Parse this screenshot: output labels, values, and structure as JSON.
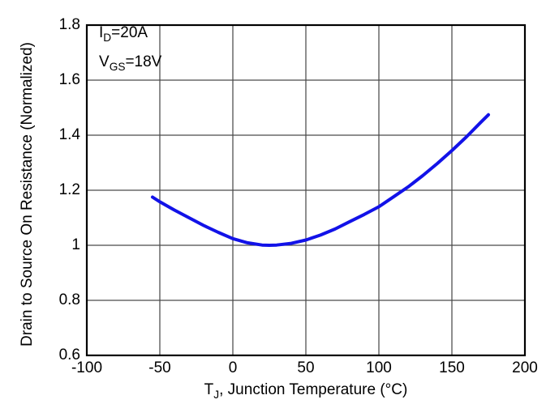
{
  "chart_data": {
    "type": "line",
    "title": "",
    "xlabel_pre": "T",
    "xlabel_sub": "J",
    "xlabel_post": ", Junction Temperature (°C)",
    "ylabel": "Drain to Source On Resistance (Normalized)",
    "xlim": [
      -100,
      200
    ],
    "ylim": [
      0.6,
      1.8
    ],
    "grid": true,
    "legend": "none",
    "xticks": [
      {
        "value": -100,
        "label": "-100"
      },
      {
        "value": -50,
        "label": "-50"
      },
      {
        "value": 0,
        "label": "0"
      },
      {
        "value": 50,
        "label": "50"
      },
      {
        "value": 100,
        "label": "100"
      },
      {
        "value": 150,
        "label": "150"
      },
      {
        "value": 200,
        "label": "200"
      }
    ],
    "yticks": [
      {
        "value": 0.6,
        "label": "0.6"
      },
      {
        "value": 0.8,
        "label": "0.8"
      },
      {
        "value": 1.0,
        "label": "1"
      },
      {
        "value": 1.2,
        "label": "1.2"
      },
      {
        "value": 1.4,
        "label": "1.4"
      },
      {
        "value": 1.6,
        "label": "1.6"
      },
      {
        "value": 1.8,
        "label": "1.8"
      }
    ],
    "annotations": [
      {
        "pre": "I",
        "sub": "D",
        "post": "=20A"
      },
      {
        "pre": "V",
        "sub": "GS",
        "post": "=18V"
      }
    ],
    "series": [
      {
        "name": "normalized-rds-on",
        "color": "#1212e8",
        "points": [
          [
            -55,
            1.175
          ],
          [
            -50,
            1.158
          ],
          [
            -40,
            1.128
          ],
          [
            -30,
            1.1
          ],
          [
            -20,
            1.072
          ],
          [
            -10,
            1.047
          ],
          [
            0,
            1.024
          ],
          [
            10,
            1.009
          ],
          [
            20,
            1.001
          ],
          [
            25,
            1.0
          ],
          [
            30,
            1.001
          ],
          [
            40,
            1.007
          ],
          [
            50,
            1.019
          ],
          [
            60,
            1.037
          ],
          [
            70,
            1.059
          ],
          [
            80,
            1.086
          ],
          [
            90,
            1.112
          ],
          [
            100,
            1.14
          ],
          [
            110,
            1.176
          ],
          [
            120,
            1.212
          ],
          [
            130,
            1.253
          ],
          [
            140,
            1.297
          ],
          [
            150,
            1.344
          ],
          [
            160,
            1.394
          ],
          [
            170,
            1.448
          ],
          [
            175,
            1.474
          ]
        ]
      }
    ],
    "colors": {
      "grid": "#4a4a4a",
      "border": "#000000",
      "text": "#000000",
      "background": "#ffffff"
    }
  }
}
